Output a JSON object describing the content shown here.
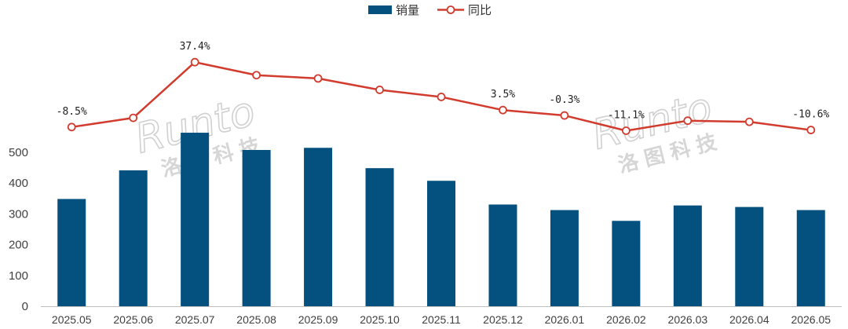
{
  "chart_data": {
    "type": "bar",
    "categories": [
      "2025.05",
      "2025.06",
      "2025.07",
      "2025.08",
      "2025.09",
      "2025.10",
      "2025.11",
      "2025.12",
      "2026.01",
      "2026.02",
      "2026.03",
      "2026.04",
      "2026.05"
    ],
    "series": [
      {
        "name": "销量",
        "type": "bar",
        "axis": "left",
        "color": "#04507f",
        "values": [
          348,
          441,
          563,
          507,
          514,
          448,
          407,
          330,
          312,
          277,
          327,
          322,
          312
        ]
      },
      {
        "name": "同比",
        "type": "line",
        "axis": "right",
        "color": "#d13c2f",
        "values": [
          -8.5,
          -2.0,
          37.4,
          28.2,
          25.9,
          17.8,
          12.8,
          3.5,
          -0.3,
          -11.1,
          -4.0,
          -4.8,
          -10.6
        ],
        "labels": [
          "-8.5%",
          "",
          "37.4%",
          "",
          "",
          "",
          "",
          "3.5%",
          "-0.3%",
          "-11.1%",
          "",
          "",
          "-10.6%"
        ]
      }
    ],
    "yticks": [
      "0",
      "100",
      "200",
      "300",
      "400",
      "500"
    ],
    "ylim": [
      0,
      600
    ],
    "grid": false,
    "legend": "top-center",
    "title": "",
    "xlabel": "",
    "ylabel": ""
  },
  "watermarks": [
    {
      "en": "Runto",
      "cn": "洛图科技"
    },
    {
      "en": "Runto",
      "cn": "洛图科技"
    }
  ]
}
